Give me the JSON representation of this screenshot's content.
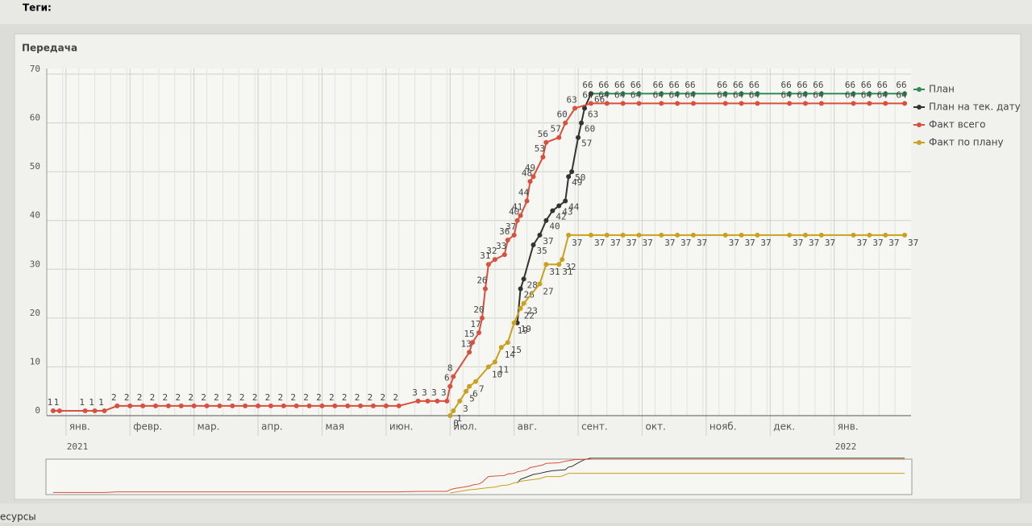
{
  "header": {
    "tags_label": "Теги:"
  },
  "footer": {
    "left_text": "есурсы"
  },
  "chart_data": {
    "type": "line",
    "title": "Передача",
    "xlim": [
      -0.3,
      13.2
    ],
    "xticks": [
      {
        "value": 0,
        "label": "янв."
      },
      {
        "value": 1,
        "label": "февр."
      },
      {
        "value": 2,
        "label": "мар."
      },
      {
        "value": 3,
        "label": "апр."
      },
      {
        "value": 4,
        "label": "мая"
      },
      {
        "value": 5,
        "label": "июн."
      },
      {
        "value": 6,
        "label": "июл."
      },
      {
        "value": 7,
        "label": "авг."
      },
      {
        "value": 8,
        "label": "сент."
      },
      {
        "value": 9,
        "label": "окт."
      },
      {
        "value": 10,
        "label": "нояб."
      },
      {
        "value": 11,
        "label": "дек."
      },
      {
        "value": 12,
        "label": "янв."
      }
    ],
    "year_labels": [
      {
        "value": 0,
        "label": "2021"
      },
      {
        "value": 12,
        "label": "2022"
      }
    ],
    "ylim": [
      0,
      70
    ],
    "yticks": [
      0,
      10,
      20,
      30,
      40,
      50,
      60,
      70
    ],
    "grid": true,
    "legend": "right",
    "series": [
      {
        "name": "План",
        "color": "#2e8b57",
        "label_pos": "above",
        "x": [
          8.2,
          8.45,
          8.7,
          8.95,
          9.3,
          9.55,
          9.8,
          10.3,
          10.55,
          10.8,
          11.3,
          11.55,
          11.8,
          12.3,
          12.55,
          12.8,
          13.1
        ],
        "values": [
          66,
          66,
          66,
          66,
          66,
          66,
          66,
          66,
          66,
          66,
          66,
          66,
          66,
          66,
          66,
          66,
          66
        ]
      },
      {
        "name": "План на тек. дату",
        "color": "#333333",
        "label_pos": "right",
        "x": [
          7.05,
          7.1,
          7.15,
          7.3,
          7.4,
          7.5,
          7.6,
          7.7,
          7.8,
          7.85,
          7.9,
          8.0,
          8.05,
          8.1,
          8.2
        ],
        "values": [
          19,
          26,
          28,
          35,
          37,
          40,
          42,
          43,
          44,
          49,
          50,
          57,
          60,
          63,
          66
        ]
      },
      {
        "name": "Факт всего",
        "color": "#d9503f",
        "label_pos": "above",
        "x": [
          -0.2,
          -0.1,
          0.3,
          0.45,
          0.6,
          0.8,
          1.0,
          1.2,
          1.4,
          1.6,
          1.8,
          2.0,
          2.2,
          2.4,
          2.6,
          2.8,
          3.0,
          3.2,
          3.4,
          3.6,
          3.8,
          4.0,
          4.2,
          4.4,
          4.6,
          4.8,
          5.0,
          5.2,
          5.5,
          5.65,
          5.8,
          5.95,
          6.0,
          6.05,
          6.3,
          6.35,
          6.45,
          6.5,
          6.55,
          6.6,
          6.7,
          6.85,
          6.9,
          7.0,
          7.05,
          7.1,
          7.2,
          7.25,
          7.3,
          7.45,
          7.5,
          7.7,
          7.8,
          7.95,
          8.2,
          8.45,
          8.7,
          8.95,
          9.3,
          9.55,
          9.8,
          10.3,
          10.55,
          10.8,
          11.3,
          11.55,
          11.8,
          12.3,
          12.55,
          12.8,
          13.1
        ],
        "values": [
          1,
          1,
          1,
          1,
          1,
          2,
          2,
          2,
          2,
          2,
          2,
          2,
          2,
          2,
          2,
          2,
          2,
          2,
          2,
          2,
          2,
          2,
          2,
          2,
          2,
          2,
          2,
          2,
          3,
          3,
          3,
          3,
          6,
          8,
          13,
          15,
          17,
          20,
          26,
          31,
          32,
          33,
          36,
          37,
          40,
          41,
          44,
          48,
          49,
          53,
          56,
          57,
          60,
          63,
          64,
          64,
          64,
          64,
          64,
          64,
          64,
          64,
          64,
          64,
          64,
          64,
          64,
          64,
          64,
          64,
          64
        ]
      },
      {
        "name": "Факт по плану",
        "color": "#c8a21e",
        "label_pos": "below",
        "x": [
          6.0,
          6.05,
          6.15,
          6.25,
          6.3,
          6.4,
          6.6,
          6.7,
          6.8,
          6.9,
          7.0,
          7.1,
          7.15,
          7.4,
          7.5,
          7.7,
          7.75,
          7.85,
          8.2,
          8.45,
          8.7,
          8.95,
          9.3,
          9.55,
          9.8,
          10.3,
          10.55,
          10.8,
          11.3,
          11.55,
          11.8,
          12.3,
          12.55,
          12.8,
          13.1
        ],
        "values": [
          0,
          1,
          3,
          5,
          6,
          7,
          10,
          11,
          14,
          15,
          19,
          22,
          23,
          27,
          31,
          31,
          32,
          37,
          37,
          37,
          37,
          37,
          37,
          37,
          37,
          37,
          37,
          37,
          37,
          37,
          37,
          37,
          37,
          37,
          37
        ]
      }
    ]
  }
}
